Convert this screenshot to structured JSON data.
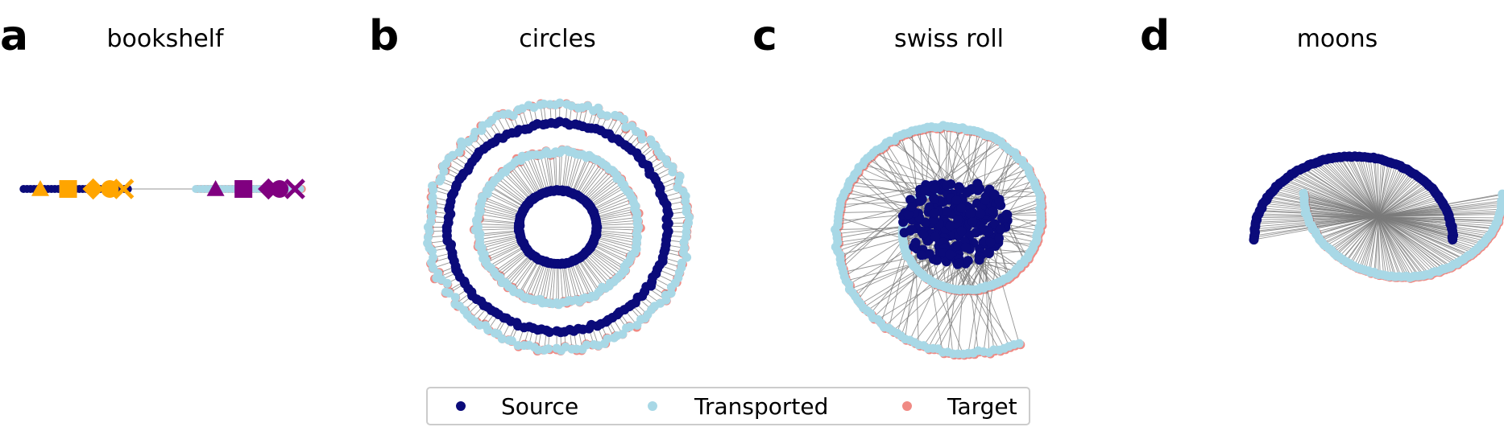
{
  "legend": [
    {
      "label": "Source",
      "color": "#0b0b7a"
    },
    {
      "label": "Transported",
      "color": "#a8d8e6"
    },
    {
      "label": "Target",
      "color": "#f08a84"
    }
  ],
  "colors": {
    "source": "#0b0b7a",
    "transported": "#a8d8e6",
    "target": "#f08a84",
    "link": "#7a7a7a",
    "orange": "#ffa500",
    "purple": "#800080"
  },
  "chart_data": [
    {
      "type": "scatter",
      "letter": "a",
      "title": "bookshelf",
      "grid": false,
      "axes_visible": false,
      "xlim": [
        -1,
        21
      ],
      "ylim": [
        -3,
        3
      ],
      "source_segment": [
        0,
        7.5
      ],
      "transported_segment": [
        12.5,
        20
      ],
      "orange_markers": [
        {
          "shape": "triangle",
          "x": 1.2
        },
        {
          "shape": "square",
          "x": 3.2
        },
        {
          "shape": "diamond",
          "x": 5.0
        },
        {
          "shape": "circle",
          "x": 6.2
        },
        {
          "shape": "x",
          "x": 7.2
        }
      ],
      "purple_markers": [
        {
          "shape": "triangle",
          "x": 13.8
        },
        {
          "shape": "square",
          "x": 15.8
        },
        {
          "shape": "diamond",
          "x": 17.6
        },
        {
          "shape": "circle",
          "x": 18.4
        },
        {
          "shape": "x",
          "x": 19.5
        }
      ]
    },
    {
      "type": "scatter",
      "letter": "b",
      "title": "circles",
      "grid": false,
      "axes_visible": false,
      "xlim": [
        -1.2,
        1.2
      ],
      "ylim": [
        -1.2,
        1.2
      ],
      "source_radii": [
        0.3,
        0.85
      ],
      "target_radii": [
        0.62,
        1.0
      ]
    },
    {
      "type": "scatter",
      "letter": "c",
      "title": "swiss roll",
      "grid": false,
      "axes_visible": false,
      "xlim": [
        -1.2,
        1.2
      ],
      "ylim": [
        -1.2,
        1.2
      ],
      "source_cluster_radius": 0.4,
      "target_spiral_radius_range": [
        0.3,
        1.15
      ]
    },
    {
      "type": "scatter",
      "letter": "d",
      "title": "moons",
      "grid": false,
      "axes_visible": false,
      "xlim": [
        -1.2,
        2.2
      ],
      "ylim": [
        -0.8,
        1.2
      ],
      "source_arc": {
        "cx": 0.5,
        "cy": 0.0,
        "r": 1.0
      },
      "target_arc": {
        "cx": 1.0,
        "cy": 0.5,
        "r": 1.0
      }
    }
  ]
}
